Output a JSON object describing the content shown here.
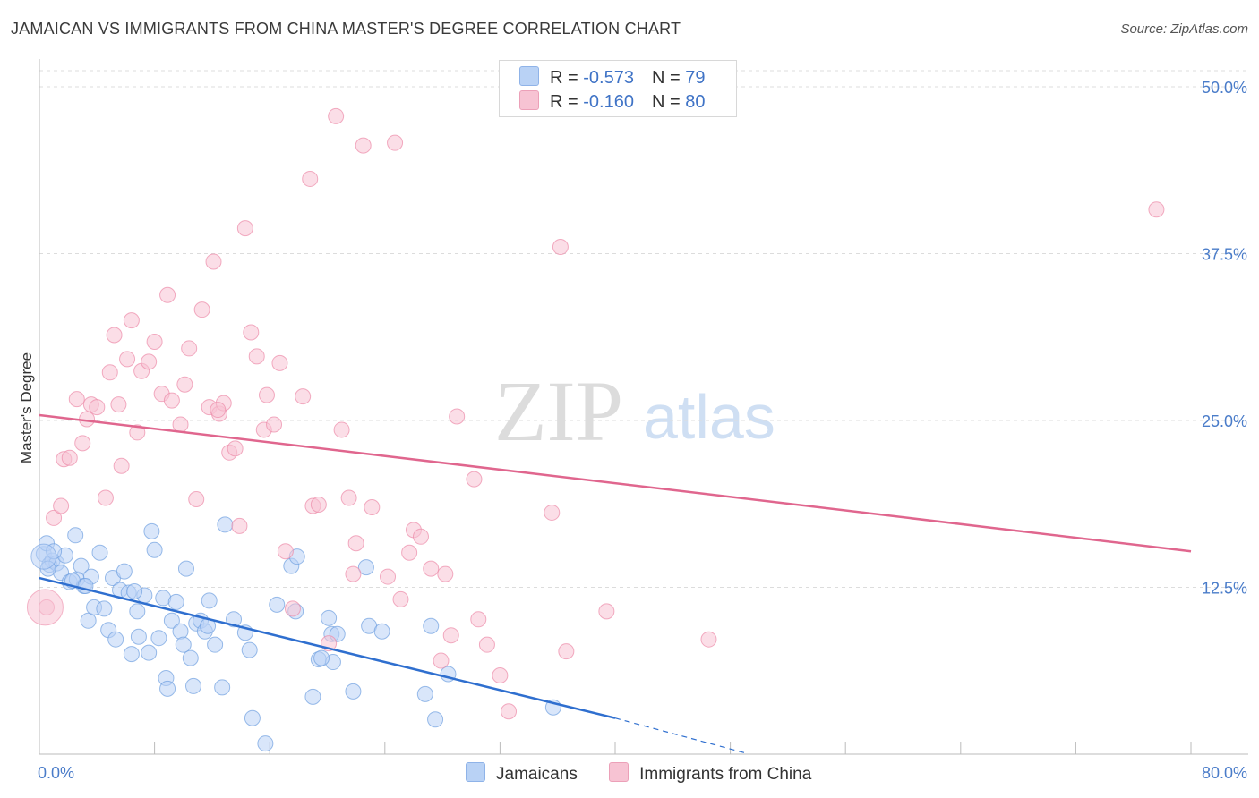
{
  "header": {
    "title": "JAMAICAN VS IMMIGRANTS FROM CHINA MASTER'S DEGREE CORRELATION CHART",
    "source": "Source: ZipAtlas.com"
  },
  "watermark": {
    "zip": "ZIP",
    "atlas": "atlas"
  },
  "legend": {
    "rows": [
      {
        "r_label": "R = ",
        "r_value": "-0.573",
        "n_label": "N = ",
        "n_value": "79",
        "color": "#a9c6f2"
      },
      {
        "r_label": "R = ",
        "r_value": "-0.160",
        "n_label": "N = ",
        "n_value": "80",
        "color": "#f7b8cb"
      }
    ]
  },
  "bottom_legend": {
    "series0": "Jamaicans",
    "series1": "Immigrants from China"
  },
  "chart_data": {
    "type": "scatter",
    "title": "JAMAICAN VS IMMIGRANTS FROM CHINA MASTER'S DEGREE CORRELATION CHART",
    "xlabel": "",
    "ylabel": "Master's Degree",
    "xlim": [
      0,
      80
    ],
    "ylim": [
      0,
      50
    ],
    "x_tick_labels": [
      "0.0%",
      "80.0%"
    ],
    "y_ticks": [
      12.5,
      25.0,
      37.5,
      50.0
    ],
    "y_tick_labels": [
      "12.5%",
      "25.0%",
      "37.5%",
      "50.0%"
    ],
    "grid": true,
    "series": [
      {
        "name": "Jamaicans",
        "color": "#6f9fe0",
        "fill": "#b9d2f5",
        "r": -0.573,
        "n": 79,
        "trend": {
          "x": [
            0,
            40
          ],
          "y": [
            13.2,
            2.7
          ],
          "dashed_to_x": 49,
          "dashed_to_y": 0.1
        },
        "points": [
          [
            0.3,
            15.0
          ],
          [
            0.5,
            15.8
          ],
          [
            0.7,
            14.2
          ],
          [
            0.9,
            14.5
          ],
          [
            1.2,
            14.3
          ],
          [
            1.5,
            13.6
          ],
          [
            1.8,
            14.9
          ],
          [
            2.1,
            12.9
          ],
          [
            2.5,
            16.4
          ],
          [
            2.6,
            13.1
          ],
          [
            2.9,
            14.1
          ],
          [
            3.1,
            12.6
          ],
          [
            3.4,
            10.0
          ],
          [
            3.6,
            13.3
          ],
          [
            3.8,
            11.0
          ],
          [
            4.2,
            15.1
          ],
          [
            4.5,
            10.9
          ],
          [
            4.8,
            9.3
          ],
          [
            5.1,
            13.2
          ],
          [
            5.3,
            8.6
          ],
          [
            5.6,
            12.3
          ],
          [
            5.9,
            13.7
          ],
          [
            6.2,
            12.1
          ],
          [
            6.4,
            7.5
          ],
          [
            6.8,
            10.7
          ],
          [
            6.9,
            8.8
          ],
          [
            7.3,
            11.9
          ],
          [
            7.6,
            7.6
          ],
          [
            7.8,
            16.7
          ],
          [
            8.0,
            15.3
          ],
          [
            8.3,
            8.7
          ],
          [
            8.6,
            11.7
          ],
          [
            8.8,
            5.7
          ],
          [
            8.9,
            4.9
          ],
          [
            9.2,
            10.0
          ],
          [
            9.5,
            11.4
          ],
          [
            9.8,
            9.2
          ],
          [
            10.0,
            8.2
          ],
          [
            10.2,
            13.9
          ],
          [
            10.5,
            7.2
          ],
          [
            10.7,
            5.1
          ],
          [
            10.9,
            9.8
          ],
          [
            11.2,
            10.0
          ],
          [
            11.5,
            9.2
          ],
          [
            11.8,
            11.5
          ],
          [
            12.2,
            8.2
          ],
          [
            12.7,
            5.0
          ],
          [
            12.9,
            17.2
          ],
          [
            13.5,
            10.1
          ],
          [
            14.3,
            9.1
          ],
          [
            14.6,
            7.8
          ],
          [
            14.8,
            2.7
          ],
          [
            15.7,
            0.8
          ],
          [
            16.5,
            11.2
          ],
          [
            17.5,
            14.1
          ],
          [
            17.8,
            10.7
          ],
          [
            17.9,
            14.8
          ],
          [
            19.0,
            4.3
          ],
          [
            19.4,
            7.1
          ],
          [
            20.1,
            10.2
          ],
          [
            20.3,
            9.0
          ],
          [
            20.4,
            6.9
          ],
          [
            20.7,
            9.0
          ],
          [
            21.8,
            4.7
          ],
          [
            22.7,
            14.0
          ],
          [
            22.9,
            9.6
          ],
          [
            23.8,
            9.2
          ],
          [
            26.8,
            4.5
          ],
          [
            27.2,
            9.6
          ],
          [
            27.5,
            2.6
          ],
          [
            28.4,
            6.0
          ],
          [
            35.7,
            3.5
          ],
          [
            0.6,
            13.9
          ],
          [
            1.0,
            15.2
          ],
          [
            2.3,
            13.0
          ],
          [
            3.2,
            12.6
          ],
          [
            6.6,
            12.2
          ],
          [
            11.7,
            9.6
          ],
          [
            19.6,
            7.2
          ]
        ]
      },
      {
        "name": "Immigrants from China",
        "color": "#ec8aa8",
        "fill": "#f7c3d3",
        "r": -0.16,
        "n": 80,
        "trend": {
          "x": [
            0,
            80
          ],
          "y": [
            25.4,
            15.2
          ]
        },
        "points": [
          [
            0.5,
            11.0
          ],
          [
            1.0,
            17.7
          ],
          [
            1.5,
            18.6
          ],
          [
            1.7,
            22.1
          ],
          [
            2.1,
            22.2
          ],
          [
            2.6,
            26.6
          ],
          [
            3.0,
            23.3
          ],
          [
            3.3,
            25.1
          ],
          [
            3.6,
            26.2
          ],
          [
            4.0,
            26.0
          ],
          [
            4.6,
            19.2
          ],
          [
            4.9,
            28.6
          ],
          [
            5.2,
            31.4
          ],
          [
            5.5,
            26.2
          ],
          [
            5.7,
            21.6
          ],
          [
            6.1,
            29.6
          ],
          [
            6.4,
            32.5
          ],
          [
            6.8,
            24.1
          ],
          [
            7.1,
            28.7
          ],
          [
            7.6,
            29.4
          ],
          [
            8.0,
            30.9
          ],
          [
            8.5,
            27.0
          ],
          [
            8.9,
            34.4
          ],
          [
            9.2,
            26.5
          ],
          [
            9.8,
            24.7
          ],
          [
            10.1,
            27.7
          ],
          [
            10.4,
            30.4
          ],
          [
            10.9,
            19.1
          ],
          [
            11.3,
            33.3
          ],
          [
            11.8,
            26.0
          ],
          [
            12.1,
            36.9
          ],
          [
            12.5,
            25.5
          ],
          [
            12.8,
            26.3
          ],
          [
            13.2,
            22.6
          ],
          [
            13.6,
            22.9
          ],
          [
            13.9,
            17.1
          ],
          [
            14.3,
            39.4
          ],
          [
            14.7,
            31.6
          ],
          [
            15.1,
            29.8
          ],
          [
            15.6,
            24.3
          ],
          [
            15.8,
            26.9
          ],
          [
            16.3,
            24.7
          ],
          [
            16.7,
            29.3
          ],
          [
            17.1,
            15.2
          ],
          [
            17.6,
            10.9
          ],
          [
            18.3,
            26.8
          ],
          [
            18.8,
            43.1
          ],
          [
            19.0,
            18.6
          ],
          [
            19.4,
            18.7
          ],
          [
            20.1,
            8.3
          ],
          [
            20.6,
            47.8
          ],
          [
            21.0,
            24.3
          ],
          [
            21.5,
            19.2
          ],
          [
            21.8,
            13.5
          ],
          [
            22.0,
            15.8
          ],
          [
            22.5,
            45.6
          ],
          [
            23.1,
            18.5
          ],
          [
            24.2,
            13.3
          ],
          [
            24.7,
            45.8
          ],
          [
            25.1,
            11.6
          ],
          [
            25.7,
            15.1
          ],
          [
            26.0,
            16.8
          ],
          [
            26.5,
            16.3
          ],
          [
            27.2,
            13.9
          ],
          [
            27.9,
            7.0
          ],
          [
            28.2,
            13.5
          ],
          [
            28.6,
            8.9
          ],
          [
            29.0,
            25.3
          ],
          [
            30.2,
            20.6
          ],
          [
            30.5,
            10.1
          ],
          [
            31.1,
            8.2
          ],
          [
            32.0,
            5.9
          ],
          [
            32.6,
            3.2
          ],
          [
            35.6,
            18.1
          ],
          [
            36.2,
            38.0
          ],
          [
            36.6,
            7.7
          ],
          [
            39.4,
            10.7
          ],
          [
            46.5,
            8.6
          ],
          [
            77.6,
            40.8
          ],
          [
            12.4,
            25.8
          ]
        ]
      }
    ]
  }
}
